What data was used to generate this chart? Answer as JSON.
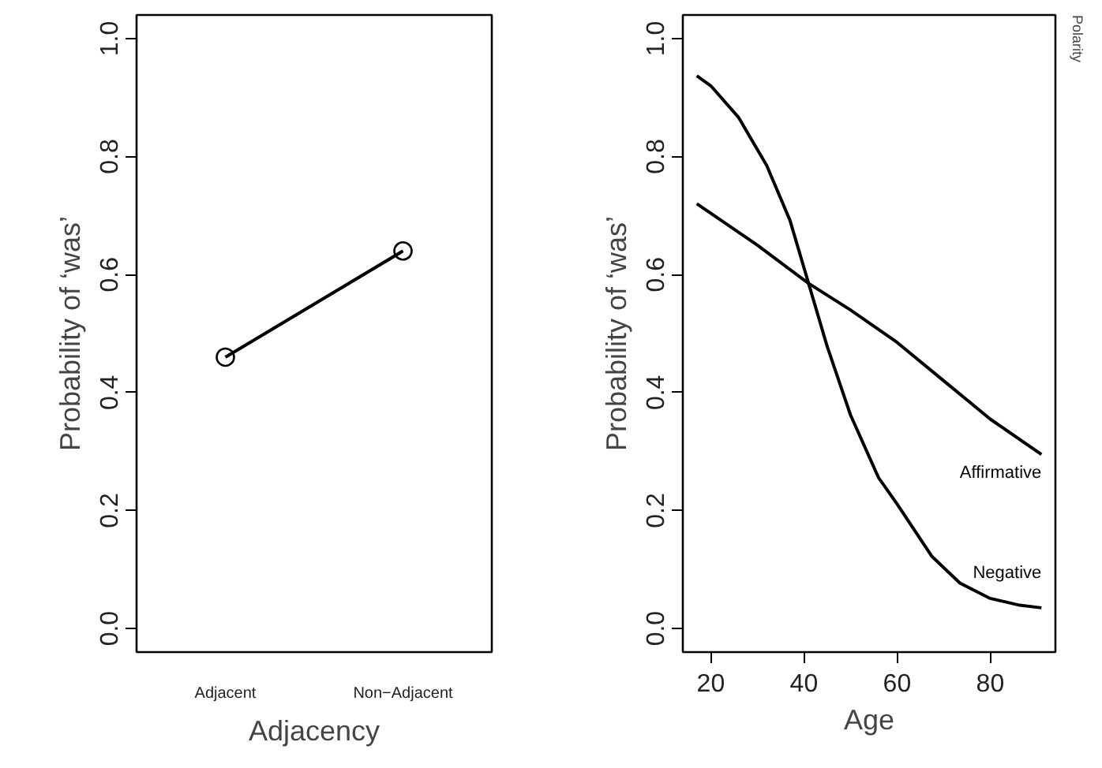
{
  "chart_data": [
    {
      "type": "line",
      "xlabel": "Adjacency",
      "ylabel": "Probability of ‘was’",
      "categories": [
        "Adjacent",
        "Non−Adjacent"
      ],
      "series": [
        {
          "color": "#000000",
          "values": [
            0.46,
            0.64
          ]
        }
      ],
      "marker": "circle",
      "ylim": [
        -0.04,
        1.04
      ],
      "yticks": [
        {
          "value": 0,
          "label": "0.0"
        },
        {
          "value": 0.2,
          "label": "0.2"
        },
        {
          "value": 0.4,
          "label": "0.4"
        },
        {
          "value": 0.6,
          "label": "0.6"
        },
        {
          "value": 0.8,
          "label": "0.8"
        },
        {
          "value": 1,
          "label": "1.0"
        }
      ]
    },
    {
      "type": "line",
      "xlabel": "Age",
      "ylabel": "Probability of ‘was’",
      "xlim": [
        14,
        94
      ],
      "xticks": [
        20,
        40,
        60,
        80
      ],
      "ylim": [
        -0.04,
        1.04
      ],
      "yticks": [
        {
          "value": 0,
          "label": "0.0"
        },
        {
          "value": 0.2,
          "label": "0.2"
        },
        {
          "value": 0.4,
          "label": "0.4"
        },
        {
          "value": 0.6,
          "label": "0.6"
        },
        {
          "value": 0.8,
          "label": "0.8"
        },
        {
          "value": 1,
          "label": "1.0"
        }
      ],
      "series": [
        {
          "name": "Affirmative",
          "color": "#000000",
          "x": [
            17,
            30,
            41,
            50,
            60,
            70,
            80,
            91
          ],
          "values": [
            0.72,
            0.65,
            0.585,
            0.54,
            0.485,
            0.42,
            0.355,
            0.295
          ]
        },
        {
          "name": "Negative",
          "color": "#000000",
          "x": [
            17,
            20,
            26,
            32,
            37,
            41,
            45,
            50,
            56,
            60,
            67.5,
            73.5,
            80,
            86,
            91
          ],
          "values": [
            0.937,
            0.92,
            0.866,
            0.785,
            0.692,
            0.585,
            0.478,
            0.362,
            0.256,
            0.211,
            0.122,
            0.077,
            0.051,
            0.04,
            0.035
          ]
        }
      ],
      "annotations": [
        "Polarity"
      ]
    }
  ]
}
